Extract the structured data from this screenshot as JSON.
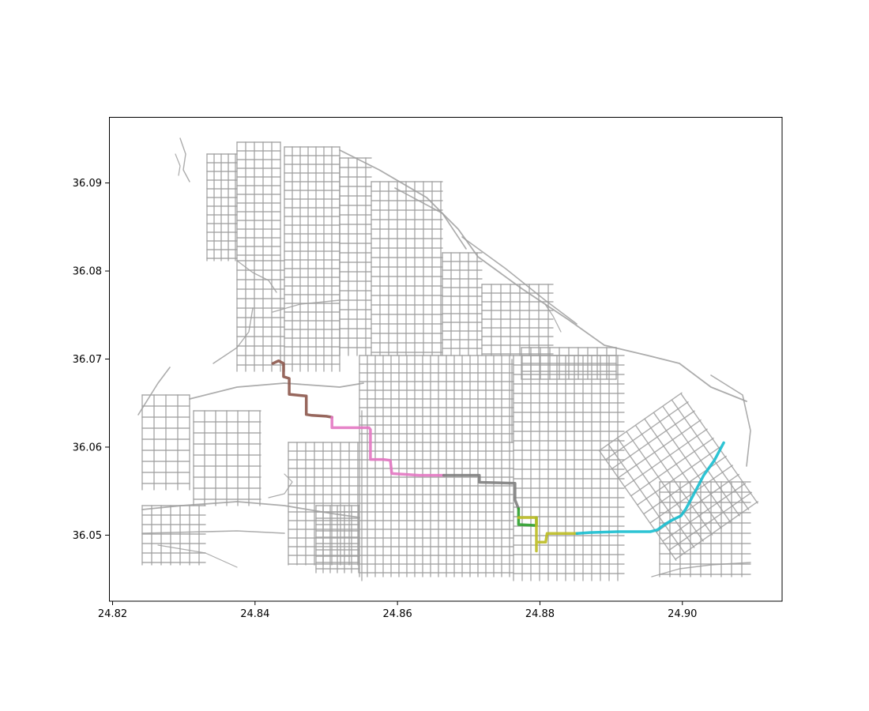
{
  "figure": {
    "background": "#ffffff",
    "street_color": "#9e9e9e",
    "axes_color": "#000000"
  },
  "chart_data": {
    "type": "scatter",
    "title": "",
    "xlabel": "",
    "ylabel": "",
    "xlim": [
      24.8195,
      24.914
    ],
    "ylim": [
      36.0425,
      36.0975
    ],
    "grid": false,
    "x_ticks": [
      {
        "value": 24.82,
        "label": "24.82"
      },
      {
        "value": 24.84,
        "label": "24.84"
      },
      {
        "value": 24.86,
        "label": "24.86"
      },
      {
        "value": 24.88,
        "label": "24.88"
      },
      {
        "value": 24.9,
        "label": "24.90"
      }
    ],
    "y_ticks": [
      {
        "value": 36.05,
        "label": "36.05"
      },
      {
        "value": 36.06,
        "label": "36.06"
      },
      {
        "value": 36.07,
        "label": "36.07"
      },
      {
        "value": 36.08,
        "label": "36.08"
      },
      {
        "value": 36.09,
        "label": "36.09"
      }
    ],
    "route_segments": [
      {
        "color": "#8c564b",
        "points": [
          [
            24.8425,
            36.0695
          ],
          [
            24.8433,
            36.0698
          ],
          [
            24.844,
            36.0695
          ],
          [
            24.844,
            36.068
          ],
          [
            24.8448,
            36.0678
          ],
          [
            24.8448,
            36.066
          ],
          [
            24.8472,
            36.0658
          ],
          [
            24.8472,
            36.0637
          ],
          [
            24.848,
            36.0636
          ],
          [
            24.85,
            36.0635
          ],
          [
            24.8508,
            36.0634
          ]
        ]
      },
      {
        "color": "#e377c2",
        "points": [
          [
            24.8508,
            36.0634
          ],
          [
            24.8508,
            36.0622
          ],
          [
            24.853,
            36.0622
          ],
          [
            24.856,
            36.0622
          ],
          [
            24.8562,
            36.062
          ],
          [
            24.8562,
            36.0586
          ],
          [
            24.858,
            36.0586
          ],
          [
            24.859,
            36.0585
          ],
          [
            24.8592,
            36.057
          ],
          [
            24.863,
            36.0568
          ],
          [
            24.8665,
            36.0568
          ]
        ]
      },
      {
        "color": "#7f7f7f",
        "points": [
          [
            24.8665,
            36.0568
          ],
          [
            24.8715,
            36.0568
          ],
          [
            24.8715,
            36.056
          ],
          [
            24.8765,
            36.0559
          ],
          [
            24.8765,
            36.054
          ],
          [
            24.877,
            36.053
          ]
        ]
      },
      {
        "color": "#2ca02c",
        "points": [
          [
            24.877,
            36.053
          ],
          [
            24.877,
            36.0512
          ],
          [
            24.8795,
            36.0511
          ],
          [
            24.8795,
            36.052
          ]
        ]
      },
      {
        "color": "#bcbd22",
        "points": [
          [
            24.877,
            36.052
          ],
          [
            24.8795,
            36.052
          ],
          [
            24.8795,
            36.0482
          ],
          [
            24.8795,
            36.0492
          ],
          [
            24.8808,
            36.0492
          ],
          [
            24.881,
            36.0502
          ],
          [
            24.8835,
            36.0502
          ],
          [
            24.8852,
            36.0502
          ]
        ]
      },
      {
        "color": "#17becf",
        "points": [
          [
            24.8852,
            36.0502
          ],
          [
            24.887,
            36.0503
          ],
          [
            24.891,
            36.0504
          ],
          [
            24.8955,
            36.0504
          ],
          [
            24.8965,
            36.0506
          ],
          [
            24.8975,
            36.0512
          ],
          [
            24.8985,
            36.0517
          ],
          [
            24.8998,
            36.0522
          ],
          [
            24.9005,
            36.053
          ],
          [
            24.9015,
            36.0545
          ],
          [
            24.903,
            36.0568
          ],
          [
            24.9045,
            36.0585
          ],
          [
            24.9058,
            36.0605
          ]
        ]
      }
    ]
  }
}
